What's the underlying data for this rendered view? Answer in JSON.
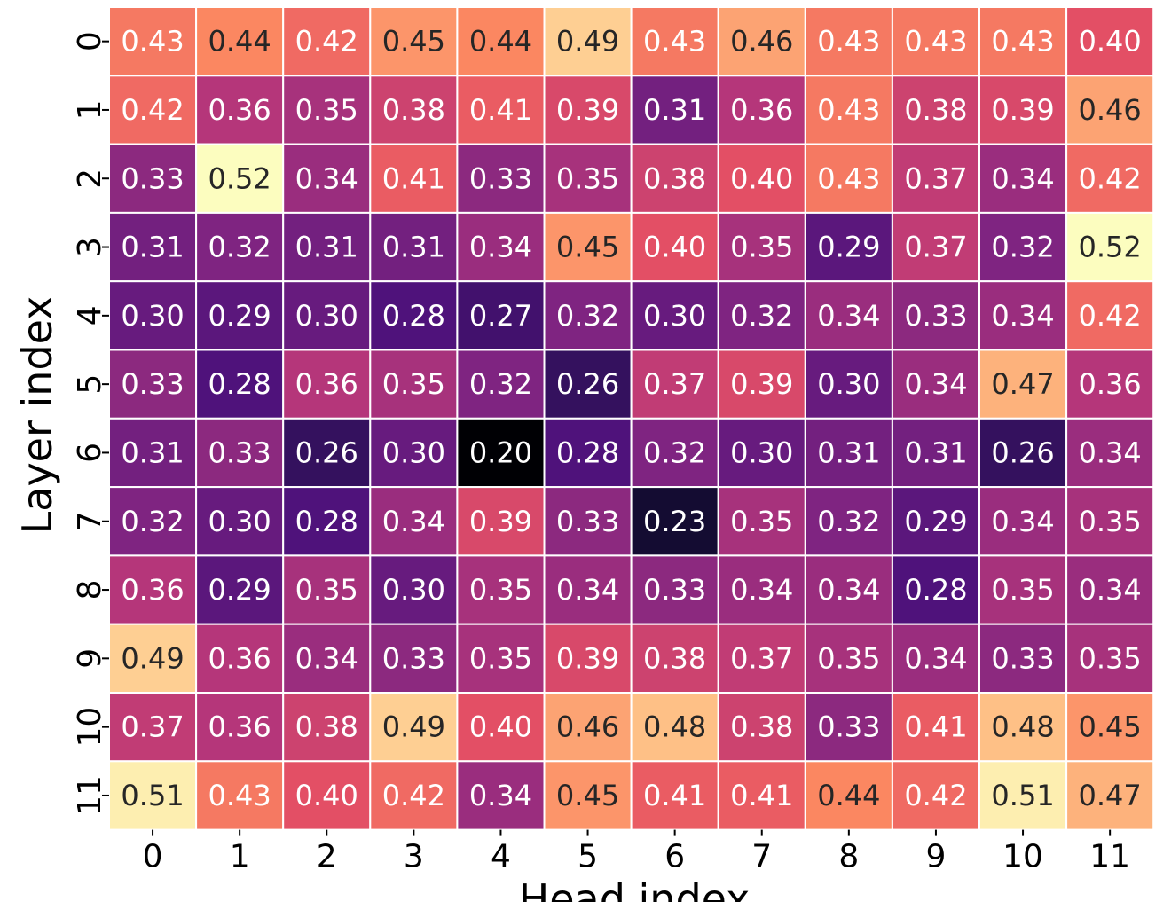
{
  "chart_data": {
    "type": "heatmap",
    "xlabel": "Head index",
    "ylabel": "Layer index",
    "x_ticks": [
      "0",
      "1",
      "2",
      "3",
      "4",
      "5",
      "6",
      "7",
      "8",
      "9",
      "10",
      "11"
    ],
    "y_ticks": [
      "0",
      "1",
      "2",
      "3",
      "4",
      "5",
      "6",
      "7",
      "8",
      "9",
      "10",
      "11"
    ],
    "colormap": "magma",
    "vmin": 0.2,
    "vmax": 0.52,
    "values": [
      [
        "0.43",
        "0.44",
        "0.42",
        "0.45",
        "0.44",
        "0.49",
        "0.43",
        "0.46",
        "0.43",
        "0.43",
        "0.43",
        "0.40"
      ],
      [
        "0.42",
        "0.36",
        "0.35",
        "0.38",
        "0.41",
        "0.39",
        "0.31",
        "0.36",
        "0.43",
        "0.38",
        "0.39",
        "0.46"
      ],
      [
        "0.33",
        "0.52",
        "0.34",
        "0.41",
        "0.33",
        "0.35",
        "0.38",
        "0.40",
        "0.43",
        "0.37",
        "0.34",
        "0.42"
      ],
      [
        "0.31",
        "0.32",
        "0.31",
        "0.31",
        "0.34",
        "0.45",
        "0.40",
        "0.35",
        "0.29",
        "0.37",
        "0.32",
        "0.52"
      ],
      [
        "0.30",
        "0.29",
        "0.30",
        "0.28",
        "0.27",
        "0.32",
        "0.30",
        "0.32",
        "0.34",
        "0.33",
        "0.34",
        "0.42"
      ],
      [
        "0.33",
        "0.28",
        "0.36",
        "0.35",
        "0.32",
        "0.26",
        "0.37",
        "0.39",
        "0.30",
        "0.34",
        "0.47",
        "0.36"
      ],
      [
        "0.31",
        "0.33",
        "0.26",
        "0.30",
        "0.20",
        "0.28",
        "0.32",
        "0.30",
        "0.31",
        "0.31",
        "0.26",
        "0.34"
      ],
      [
        "0.32",
        "0.30",
        "0.28",
        "0.34",
        "0.39",
        "0.33",
        "0.23",
        "0.35",
        "0.32",
        "0.29",
        "0.34",
        "0.35"
      ],
      [
        "0.36",
        "0.29",
        "0.35",
        "0.30",
        "0.35",
        "0.34",
        "0.33",
        "0.34",
        "0.34",
        "0.28",
        "0.35",
        "0.34"
      ],
      [
        "0.49",
        "0.36",
        "0.34",
        "0.33",
        "0.35",
        "0.39",
        "0.38",
        "0.37",
        "0.35",
        "0.34",
        "0.33",
        "0.35"
      ],
      [
        "0.37",
        "0.36",
        "0.38",
        "0.49",
        "0.40",
        "0.46",
        "0.48",
        "0.38",
        "0.33",
        "0.41",
        "0.48",
        "0.45"
      ],
      [
        "0.51",
        "0.43",
        "0.40",
        "0.42",
        "0.34",
        "0.45",
        "0.41",
        "0.41",
        "0.44",
        "0.42",
        "0.51",
        "0.47"
      ]
    ]
  }
}
